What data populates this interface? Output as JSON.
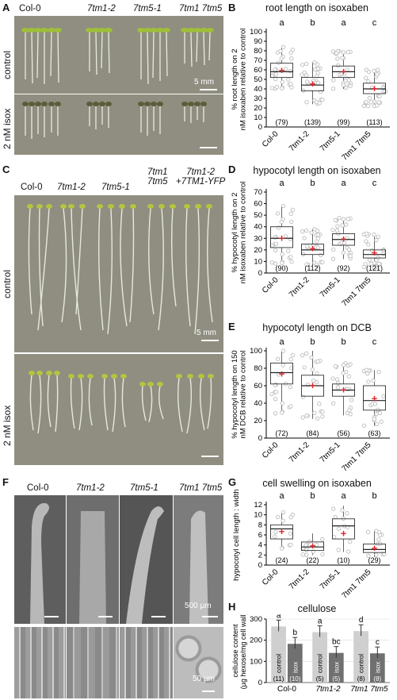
{
  "panel_letters": {
    "A": "A",
    "B": "B",
    "C": "C",
    "D": "D",
    "E": "E",
    "F": "F",
    "G": "G",
    "H": "H"
  },
  "panel_a": {
    "genotypes": [
      "Col-0",
      "7tm1-2",
      "7tm5-1",
      "7tm1 7tm5"
    ],
    "row_labels": [
      "control",
      "2 nM isox"
    ],
    "scale": "5 mm"
  },
  "panel_c": {
    "genotypes": [
      "Col-0",
      "7tm1-2",
      "7tm5-1",
      "7tm1\n7tm5",
      "7tm1-2\n+7TM1-YFP"
    ],
    "row_labels": [
      "control",
      "2 nM isox"
    ],
    "scale": "5 mm"
  },
  "panel_f": {
    "genotypes": [
      "Col-0",
      "7tm1-2",
      "7tm5-1",
      "7tm1 7tm5"
    ],
    "scale_top": "500 µm",
    "scale_bottom": "50 µm"
  },
  "colors": {
    "box_point": "#bdbdbd",
    "mean_marker": "#e0242a",
    "bar_control": "#cfcfcf",
    "bar_isox": "#707070"
  },
  "chart_data": [
    {
      "id": "B",
      "type": "box",
      "title": "root length on isoxaben",
      "ylabel": "% root length on 2 nM isoxaben relative to control",
      "ylim": [
        0,
        100
      ],
      "yticks": [
        0,
        10,
        20,
        30,
        40,
        50,
        60,
        70,
        80,
        90,
        100
      ],
      "categories": [
        "Col-0",
        "7tm1-2",
        "7tm5-1",
        "7tm1 7tm5"
      ],
      "letters": [
        "a",
        "b",
        "a",
        "c"
      ],
      "n": [
        "(79)",
        "(139)",
        "(99)",
        "(113)"
      ],
      "boxes": [
        {
          "q1": 52,
          "median": 58,
          "q3": 67,
          "wlo": 40,
          "whi": 84,
          "mean": 59
        },
        {
          "q1": 38,
          "median": 44,
          "q3": 52,
          "wlo": 24,
          "whi": 68,
          "mean": 45
        },
        {
          "q1": 52,
          "median": 58,
          "q3": 64,
          "wlo": 40,
          "whi": 80,
          "mean": 58
        },
        {
          "q1": 35,
          "median": 40,
          "q3": 46,
          "wlo": 22,
          "whi": 60,
          "mean": 40
        }
      ]
    },
    {
      "id": "D",
      "type": "box",
      "title": "hypocotyl length on isoxaben",
      "ylabel": "% hypocotyl length on 2 nM isoxaben relative to control",
      "ylim": [
        0,
        70
      ],
      "yticks": [
        0,
        10,
        20,
        30,
        40,
        50,
        60,
        70
      ],
      "categories": [
        "Col-0",
        "7tm1-2",
        "7tm5-1",
        "7tm1 7tm5"
      ],
      "letters": [
        "a",
        "b",
        "a",
        "c"
      ],
      "n": [
        "(90)",
        "(112)",
        "(92)",
        "(121)"
      ],
      "boxes": [
        {
          "q1": 22,
          "median": 30,
          "q3": 40,
          "wlo": 8,
          "whi": 58,
          "mean": 30
        },
        {
          "q1": 16,
          "median": 20,
          "q3": 25,
          "wlo": 6,
          "whi": 38,
          "mean": 21
        },
        {
          "q1": 24,
          "median": 29,
          "q3": 34,
          "wlo": 12,
          "whi": 48,
          "mean": 29
        },
        {
          "q1": 13,
          "median": 16,
          "q3": 20,
          "wlo": 5,
          "whi": 34,
          "mean": 17
        }
      ]
    },
    {
      "id": "E",
      "type": "box",
      "title": "hypocotyl length on DCB",
      "ylabel": "% hypocotyl length on 150 nM DCB relative to control",
      "ylim": [
        0,
        100
      ],
      "yticks": [
        0,
        20,
        40,
        60,
        80,
        100
      ],
      "categories": [
        "Col-0",
        "7tm1-2",
        "7tm5-1",
        "7tm1 7tm5"
      ],
      "letters": [
        "a",
        "b",
        "b",
        "c"
      ],
      "n": [
        "(72)",
        "(84)",
        "(56)",
        "(63)"
      ],
      "boxes": [
        {
          "q1": 62,
          "median": 75,
          "q3": 86,
          "wlo": 28,
          "whi": 100,
          "mean": 73
        },
        {
          "q1": 48,
          "median": 60,
          "q3": 72,
          "wlo": 22,
          "whi": 100,
          "mean": 60
        },
        {
          "q1": 48,
          "median": 55,
          "q3": 62,
          "wlo": 26,
          "whi": 86,
          "mean": 55
        },
        {
          "q1": 32,
          "median": 43,
          "q3": 60,
          "wlo": 14,
          "whi": 78,
          "mean": 45
        }
      ]
    },
    {
      "id": "G",
      "type": "box",
      "title": "cell swelling on isoxaben",
      "ylabel": "hypocotyl cell length : width",
      "ylim": [
        0,
        12
      ],
      "yticks": [
        0,
        2,
        4,
        6,
        8,
        10,
        12
      ],
      "categories": [
        "Col-0",
        "7tm1-2",
        "7tm5-1",
        "7tm1 7tm5"
      ],
      "letters": [
        "a",
        "b",
        "a",
        "b"
      ],
      "n": [
        "(24)",
        "(22)",
        "(10)",
        "(29)"
      ],
      "boxes": [
        {
          "q1": 5.2,
          "median": 7.2,
          "q3": 8.0,
          "wlo": 3.2,
          "whi": 10.5,
          "mean": 6.6
        },
        {
          "q1": 2.9,
          "median": 3.6,
          "q3": 4.6,
          "wlo": 2.0,
          "whi": 6.3,
          "mean": 3.8
        },
        {
          "q1": 5.2,
          "median": 7.8,
          "q3": 9.2,
          "wlo": 2.6,
          "whi": 11.8,
          "mean": 6.2
        },
        {
          "q1": 2.5,
          "median": 3.1,
          "q3": 4.2,
          "wlo": 1.6,
          "whi": 6.8,
          "mean": 3.3
        }
      ]
    },
    {
      "id": "H",
      "type": "bar",
      "title": "cellulose",
      "ylabel": "cellulose content (µg hexose/mg cell wall)",
      "ylim": [
        0,
        300
      ],
      "yticks": [
        0,
        100,
        200,
        300
      ],
      "categories": [
        "Col-0",
        "7tm1-2",
        "7tm1 7tm5"
      ],
      "series": [
        {
          "name": "control",
          "values": [
            265,
            238,
            243
          ],
          "n": [
            "(11)",
            "(5)",
            "(8)"
          ],
          "letters": [
            "a",
            "a",
            "d"
          ]
        },
        {
          "name": "isox",
          "values": [
            183,
            140,
            138
          ],
          "n": [
            "(10)",
            "(5)",
            "(8)"
          ],
          "letters": [
            "b",
            "bc",
            "c"
          ]
        }
      ]
    }
  ]
}
